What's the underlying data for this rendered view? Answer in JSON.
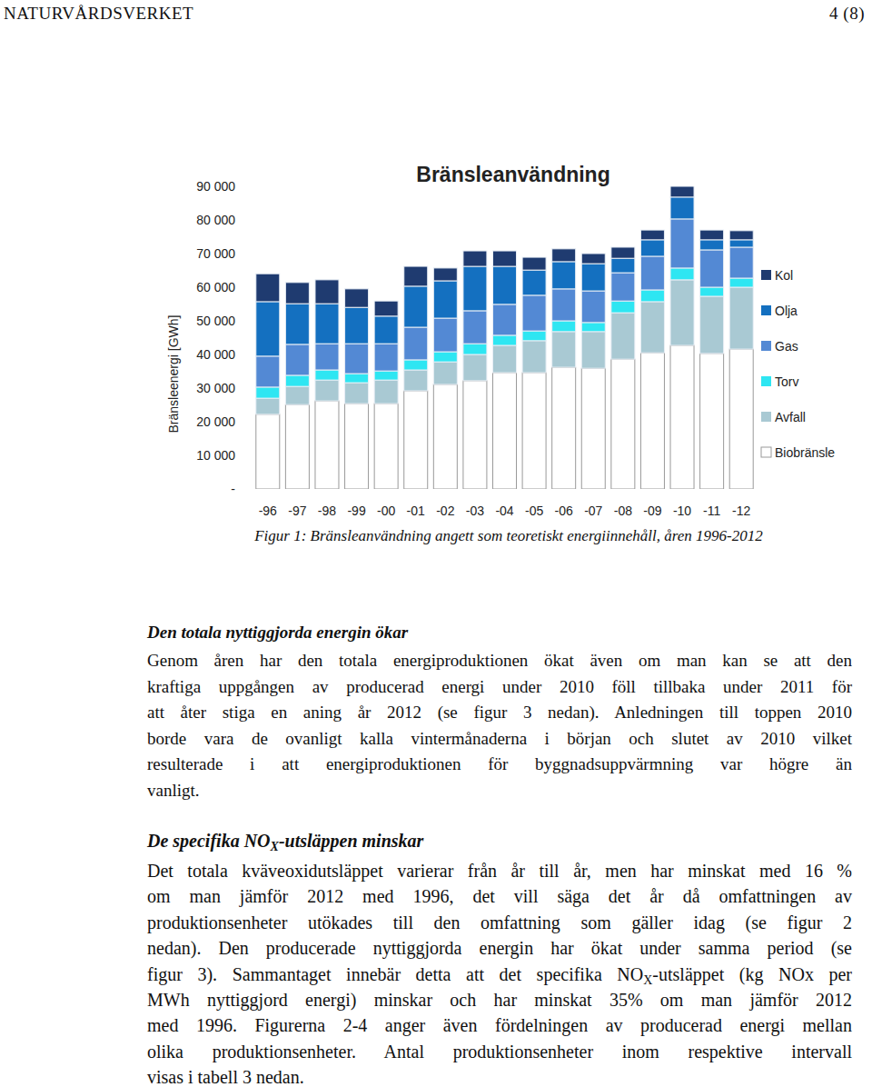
{
  "header": {
    "left": "NATURVÅRDSVERKET",
    "right": "4 (8)"
  },
  "chart_data": {
    "type": "bar",
    "title": "Bränsleanvändning",
    "y_label": "Bränsleenergi [GWh]",
    "stacked": true,
    "grid": false,
    "legend": "right",
    "categories": [
      "-96",
      "-97",
      "-98",
      "-99",
      "-00",
      "-01",
      "-02",
      "-03",
      "-04",
      "-05",
      "-06",
      "-07",
      "-08",
      "-09",
      "-10",
      "-11",
      "-12"
    ],
    "ylim": [
      0,
      90000
    ],
    "yticks": [
      {
        "value": 0,
        "label": "-"
      },
      {
        "value": 10000,
        "label": "10 000"
      },
      {
        "value": 20000,
        "label": "20 000"
      },
      {
        "value": 30000,
        "label": "30 000"
      },
      {
        "value": 40000,
        "label": "40 000"
      },
      {
        "value": 50000,
        "label": "50 000"
      },
      {
        "value": 60000,
        "label": "60 000"
      },
      {
        "value": 70000,
        "label": "70 000"
      },
      {
        "value": 80000,
        "label": "80 000"
      },
      {
        "value": 90000,
        "label": "90 000"
      }
    ],
    "series": [
      {
        "name": "Biobränsle",
        "color": "#ffffff",
        "values": [
          22200,
          25100,
          26200,
          25400,
          25400,
          29200,
          31100,
          32200,
          34600,
          34600,
          36200,
          35900,
          38600,
          40500,
          42700,
          40300,
          41600
        ]
      },
      {
        "name": "Avfall",
        "color": "#a9c9d3",
        "values": [
          4800,
          5400,
          6200,
          6200,
          7000,
          6200,
          6700,
          7800,
          8100,
          9500,
          10600,
          10900,
          13800,
          15200,
          19500,
          17000,
          18400
        ]
      },
      {
        "name": "Torv",
        "color": "#2ee6f2",
        "values": [
          3300,
          3300,
          3000,
          2700,
          2700,
          3000,
          3000,
          3200,
          3000,
          2900,
          3200,
          2700,
          3500,
          3500,
          3500,
          2700,
          2700
        ]
      },
      {
        "name": "Gas",
        "color": "#5389d4",
        "values": [
          9200,
          9200,
          7800,
          8900,
          8100,
          9700,
          10000,
          9800,
          9200,
          10600,
          9500,
          9400,
          8400,
          10000,
          14600,
          11100,
          9200
        ]
      },
      {
        "name": "Olja",
        "color": "#1470c0",
        "values": [
          16200,
          12100,
          11900,
          10800,
          8200,
          12200,
          11100,
          13200,
          11300,
          7500,
          8100,
          8100,
          4300,
          4900,
          6500,
          3000,
          2200
        ]
      },
      {
        "name": "Kol",
        "color": "#1f3b70",
        "values": [
          8300,
          6300,
          7100,
          5500,
          4500,
          5900,
          3800,
          4600,
          4600,
          3800,
          3800,
          3000,
          3300,
          2900,
          3200,
          2900,
          2700
        ]
      }
    ]
  },
  "caption": "Figur 1: Bränsleanvändning angett som teoretiskt energiinnehåll, åren 1996-2012",
  "sections": [
    {
      "heading": [
        "Den totala nyttiggjorda energin ökar"
      ],
      "lines": [
        [
          "Genom åren har den totala energiproduktionen ökat även om man kan se att den"
        ],
        [
          "kraftiga uppgången av producerad energi under 2010 föll tillbaka under 2011 för"
        ],
        [
          "att åter stiga en aning år 2012 (se figur 3 nedan). Anledningen till toppen 2010"
        ],
        [
          "borde vara de ovanligt kalla vintermånaderna i början och slutet av 2010 vilket"
        ],
        [
          "resulterade i att energiproduktionen för byggnadsuppvärmning var högre än"
        ],
        [
          "vanligt."
        ]
      ]
    },
    {
      "heading": [
        "De specifika NO",
        {
          "sub": "X"
        },
        "-utsläppen minskar"
      ],
      "lines": [
        [
          "Det totala kväveoxidutsläppet varierar från år till år, men har minskat med 16 %"
        ],
        [
          "om man jämför 2012 med 1996, det vill säga det år då omfattningen av"
        ],
        [
          "produktionsenheter utökades till den omfattning som gäller idag (se figur 2"
        ],
        [
          "nedan). Den producerade nyttiggjorda energin har ökat under samma period (se"
        ],
        [
          "figur 3). Sammantaget innebär detta att det specifika NO",
          {
            "sub": "X"
          },
          "-utsläppet (kg NOx per"
        ],
        [
          "MWh nyttiggjord energi) minskar och har minskat 35% om man jämför 2012"
        ],
        [
          "med 1996. Figurerna 2-4 anger även fördelningen av producerad energi mellan"
        ],
        [
          "olika produktionsenheter. Antal produktionsenheter inom respektive intervall"
        ],
        [
          "visas i tabell 3 nedan."
        ]
      ]
    }
  ]
}
